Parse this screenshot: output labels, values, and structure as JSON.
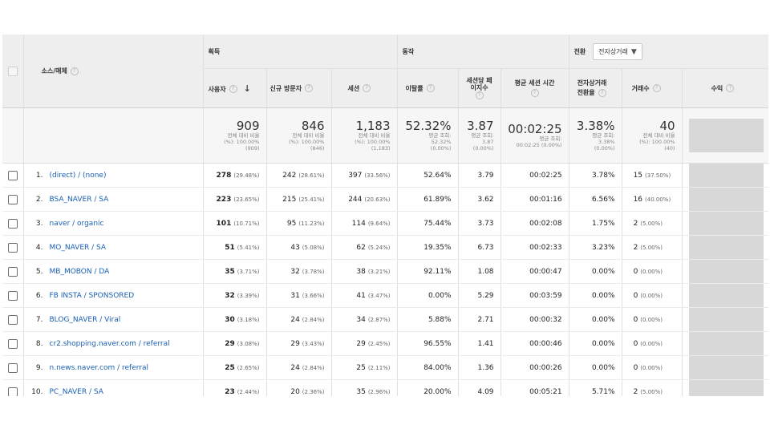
{
  "groups": {
    "acquisition": "획득",
    "behavior": "동작",
    "conversion": "전환",
    "conversion_select": "전자상거래"
  },
  "columns": {
    "source": "소스/매체",
    "users": "사용자",
    "new_users": "신규 방문자",
    "sessions": "세션",
    "bounce": "이탈률",
    "pages_line1": "세션당 페",
    "pages_line2": "이지수",
    "duration": "평균 세션 시간",
    "ecom_line1": "전자상거래",
    "ecom_line2": "전환율",
    "transactions": "거래수",
    "revenue": "수익"
  },
  "help_glyph": "?",
  "sort_glyph": "↓",
  "dropdown_glyph": "▼",
  "totals": {
    "users": {
      "value": "909",
      "l1": "전체 대비 비율",
      "l2": "(%): 100.00%",
      "l3": "(909)"
    },
    "new_users": {
      "value": "846",
      "l1": "전체 대비 비율",
      "l2": "(%): 100.00%",
      "l3": "(846)"
    },
    "sessions": {
      "value": "1,183",
      "l1": "전체 대비 비율",
      "l2": "(%): 100.00%",
      "l3": "(1,183)"
    },
    "bounce": {
      "value": "52.32%",
      "l1": "평균 조회:",
      "l2": "52.32%",
      "l3": "(0.00%)"
    },
    "pages": {
      "value": "3.87",
      "l1": "평균 조회:",
      "l2": "3.87",
      "l3": "(0.00%)"
    },
    "duration": {
      "value": "00:02:25",
      "l1": "평균 조회:",
      "l2": "00:02:25 (0.00%)"
    },
    "ecom": {
      "value": "3.38%",
      "l1": "평균 조회:",
      "l2": "3.38%",
      "l3": "(0.00%)"
    },
    "transactions": {
      "value": "40",
      "l1": "전체 대비 비율",
      "l2": "(%): 100.00%",
      "l3": "(40)"
    }
  },
  "rows": [
    {
      "rank": "1.",
      "source": "(direct) / (none)",
      "users": "278",
      "users_pct": "(29.48%)",
      "new_users": "242",
      "new_users_pct": "(28.61%)",
      "sessions": "397",
      "sessions_pct": "(33.56%)",
      "bounce": "52.64%",
      "pages": "3.79",
      "duration": "00:02:25",
      "ecom": "3.78%",
      "tx": "15",
      "tx_pct": "(37.50%)"
    },
    {
      "rank": "2.",
      "source": "BSA_NAVER / SA",
      "users": "223",
      "users_pct": "(23.65%)",
      "new_users": "215",
      "new_users_pct": "(25.41%)",
      "sessions": "244",
      "sessions_pct": "(20.63%)",
      "bounce": "61.89%",
      "pages": "3.62",
      "duration": "00:01:16",
      "ecom": "6.56%",
      "tx": "16",
      "tx_pct": "(40.00%)"
    },
    {
      "rank": "3.",
      "source": "naver / organic",
      "users": "101",
      "users_pct": "(10.71%)",
      "new_users": "95",
      "new_users_pct": "(11.23%)",
      "sessions": "114",
      "sessions_pct": "(9.64%)",
      "bounce": "75.44%",
      "pages": "3.73",
      "duration": "00:02:08",
      "ecom": "1.75%",
      "tx": "2",
      "tx_pct": "(5.00%)"
    },
    {
      "rank": "4.",
      "source": "MO_NAVER / SA",
      "users": "51",
      "users_pct": "(5.41%)",
      "new_users": "43",
      "new_users_pct": "(5.08%)",
      "sessions": "62",
      "sessions_pct": "(5.24%)",
      "bounce": "19.35%",
      "pages": "6.73",
      "duration": "00:02:33",
      "ecom": "3.23%",
      "tx": "2",
      "tx_pct": "(5.00%)"
    },
    {
      "rank": "5.",
      "source": "MB_MOBON / DA",
      "users": "35",
      "users_pct": "(3.71%)",
      "new_users": "32",
      "new_users_pct": "(3.78%)",
      "sessions": "38",
      "sessions_pct": "(3.21%)",
      "bounce": "92.11%",
      "pages": "1.08",
      "duration": "00:00:47",
      "ecom": "0.00%",
      "tx": "0",
      "tx_pct": "(0.00%)"
    },
    {
      "rank": "6.",
      "source": "FB INSTA / SPONSORED",
      "users": "32",
      "users_pct": "(3.39%)",
      "new_users": "31",
      "new_users_pct": "(3.66%)",
      "sessions": "41",
      "sessions_pct": "(3.47%)",
      "bounce": "0.00%",
      "pages": "5.29",
      "duration": "00:03:59",
      "ecom": "0.00%",
      "tx": "0",
      "tx_pct": "(0.00%)"
    },
    {
      "rank": "7.",
      "source": "BLOG_NAVER / Viral",
      "users": "30",
      "users_pct": "(3.18%)",
      "new_users": "24",
      "new_users_pct": "(2.84%)",
      "sessions": "34",
      "sessions_pct": "(2.87%)",
      "bounce": "5.88%",
      "pages": "2.71",
      "duration": "00:00:32",
      "ecom": "0.00%",
      "tx": "0",
      "tx_pct": "(0.00%)"
    },
    {
      "rank": "8.",
      "source": "cr2.shopping.naver.com / referral",
      "users": "29",
      "users_pct": "(3.08%)",
      "new_users": "29",
      "new_users_pct": "(3.43%)",
      "sessions": "29",
      "sessions_pct": "(2.45%)",
      "bounce": "96.55%",
      "pages": "1.41",
      "duration": "00:00:46",
      "ecom": "0.00%",
      "tx": "0",
      "tx_pct": "(0.00%)"
    },
    {
      "rank": "9.",
      "source": "n.news.naver.com / referral",
      "users": "25",
      "users_pct": "(2.65%)",
      "new_users": "24",
      "new_users_pct": "(2.84%)",
      "sessions": "25",
      "sessions_pct": "(2.11%)",
      "bounce": "84.00%",
      "pages": "1.36",
      "duration": "00:00:26",
      "ecom": "0.00%",
      "tx": "0",
      "tx_pct": "(0.00%)"
    },
    {
      "rank": "10.",
      "source": "PC_NAVER / SA",
      "users": "23",
      "users_pct": "(2.44%)",
      "new_users": "20",
      "new_users_pct": "(2.36%)",
      "sessions": "35",
      "sessions_pct": "(2.96%)",
      "bounce": "20.00%",
      "pages": "4.09",
      "duration": "00:05:21",
      "ecom": "5.71%",
      "tx": "2",
      "tx_pct": "(5.00%)"
    }
  ]
}
